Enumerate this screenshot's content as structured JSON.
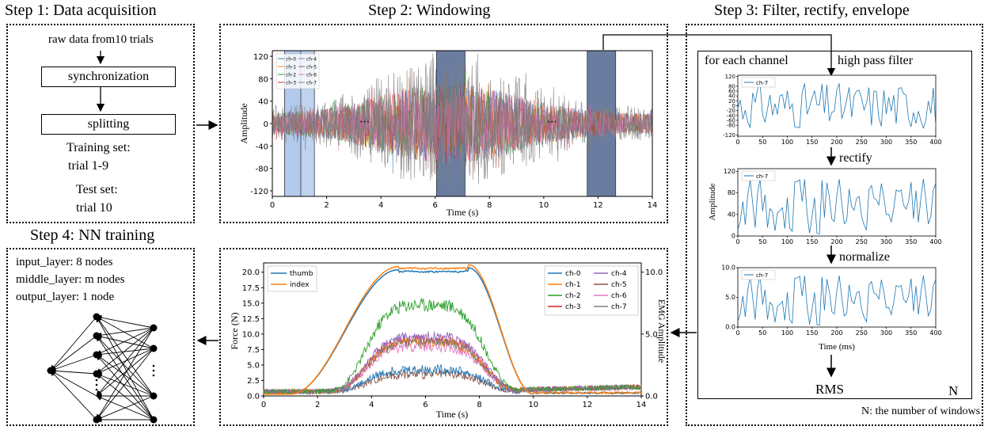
{
  "steps": {
    "s1": "Step 1: Data acquisition",
    "s2": "Step 2: Windowing",
    "s3": "Step 3: Filter, rectify, envelope",
    "s4": "Step 4: NN training"
  },
  "step1": {
    "raw": "raw data from10 trials",
    "sync": "synchronization",
    "split": "splitting",
    "train_label": "Training set:",
    "train_value": "trial 1-9",
    "test_label": "Test set:",
    "test_value": "trial 10"
  },
  "step2": {
    "ylabel": "Amplitude",
    "xlabel": "Time (s)",
    "ellipsis": "...",
    "legend": [
      "ch-0",
      "ch-1",
      "ch-2",
      "ch-3",
      "ch-4",
      "ch-5",
      "ch-6",
      "ch-7"
    ],
    "yticks": [
      "120",
      "80",
      "40",
      "0",
      "-40",
      "-80",
      "-120"
    ],
    "xticks": [
      "0",
      "2",
      "4",
      "6",
      "8",
      "10",
      "12",
      "14"
    ]
  },
  "step3": {
    "for_each": "for each channel",
    "hpf": "high pass filter",
    "rectify": "rectify",
    "normalize": "normalize",
    "rms": "RMS",
    "n": "N",
    "footnote": "N: the number of windows",
    "ylabel": "Amplitude",
    "xlabel": "Time (ms)",
    "legend": "ch-7",
    "xticks": [
      "0",
      "50",
      "100",
      "150",
      "200",
      "250",
      "300",
      "350",
      "400"
    ],
    "p1_yticks": [
      "120",
      "80",
      "60",
      "40",
      "20",
      "0",
      "-20",
      "-40",
      "-60",
      "-80",
      "-120"
    ],
    "p2_yticks": [
      "120",
      "80",
      "40",
      "0"
    ],
    "p3_yticks": [
      "10.0",
      "5.0",
      "0.0"
    ]
  },
  "step4": {
    "input": "input_layer: 8 nodes",
    "middle": "middle_layer: m nodes",
    "output": "output_layer: 1 node"
  },
  "force_plot": {
    "ylabel_left": "Force (N)",
    "ylabel_right": "EMG Amplitude",
    "xlabel": "Time (s)",
    "legend_force": [
      "thumb",
      "index"
    ],
    "legend_emg": [
      "ch-0",
      "ch-1",
      "ch-2",
      "ch-3",
      "ch-4",
      "ch-5",
      "ch-6",
      "ch-7"
    ],
    "yticks_left": [
      "20.0",
      "17.5",
      "15.0",
      "12.5",
      "10.0",
      "7.5",
      "5.0",
      "2.5",
      "0.0"
    ],
    "yticks_right": [
      "10.0",
      "5.0",
      "0.0"
    ],
    "xticks": [
      "0",
      "2",
      "4",
      "6",
      "8",
      "10",
      "12",
      "14"
    ]
  },
  "colors": {
    "ch": [
      "#1f77b4",
      "#ff7f0e",
      "#2ca02c",
      "#d62728",
      "#9467bd",
      "#8c564b",
      "#e377c2",
      "#7f7f7f"
    ],
    "window_light": "#aac4ea",
    "window_dark": "#5a6f96"
  }
}
